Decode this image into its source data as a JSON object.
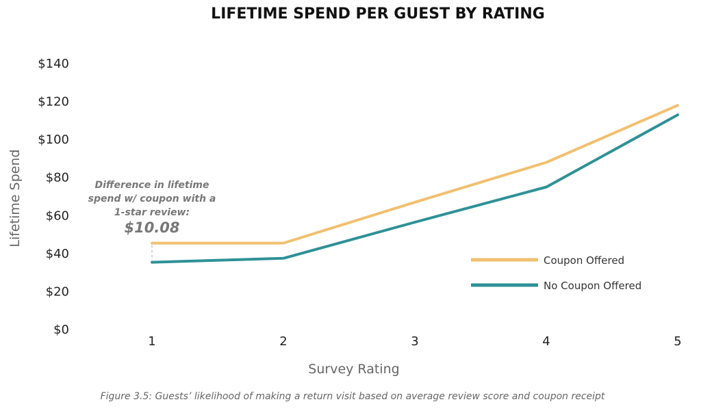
{
  "chart_data": {
    "type": "line",
    "title": "LIFETIME SPEND PER GUEST BY RATING",
    "xlabel": "Survey Rating",
    "ylabel": "Lifetime Spend",
    "categories": [
      "1",
      "2",
      "3",
      "4",
      "5"
    ],
    "y_ticks": [
      "$0",
      "$20",
      "$40",
      "$60",
      "$80",
      "$100",
      "$120",
      "$140"
    ],
    "ylim": [
      0,
      140
    ],
    "grid": false,
    "legend_position": "right",
    "series": [
      {
        "name": "Coupon Offered",
        "values": [
          45.5,
          45.5,
          67,
          88,
          118
        ],
        "color": "#F1C070"
      },
      {
        "name": "No Coupon Offered",
        "values": [
          35.4,
          37.5,
          56.5,
          75,
          113
        ],
        "color": "#2E9196"
      }
    ],
    "annotation": {
      "lines": [
        "Difference in lifetime",
        "spend w/ coupon with a",
        "1-star review:"
      ],
      "value": "$10.08",
      "connector_color": "#C8C8C8"
    },
    "caption": "Figure 3.5: Guests’ likelihood of making a return visit based on average review score and coupon receipt"
  }
}
